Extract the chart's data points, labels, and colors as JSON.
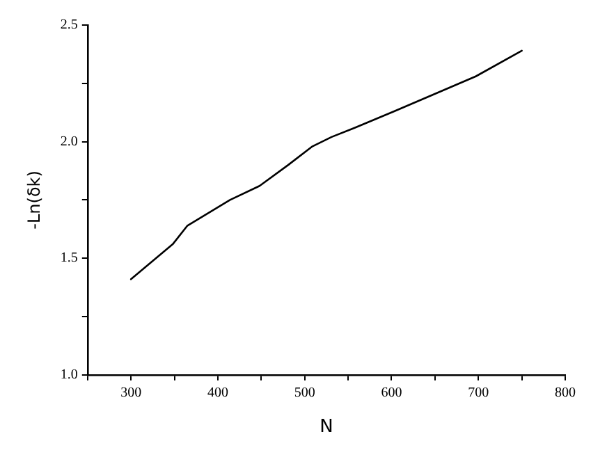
{
  "chart_data": {
    "type": "line",
    "xlabel": "N",
    "ylabel": "-Ln(δk)",
    "x": [
      300,
      348,
      365,
      414,
      448,
      481,
      509,
      531,
      558,
      603,
      647,
      697,
      750
    ],
    "series": [
      {
        "color": "#000000",
        "values": [
          1.41,
          1.56,
          1.64,
          1.75,
          1.81,
          1.9,
          1.98,
          2.02,
          2.06,
          2.13,
          2.2,
          2.28,
          2.39
        ]
      }
    ],
    "xlim": [
      250,
      800
    ],
    "xticks": [
      {
        "value": 250,
        "label": null
      },
      300,
      {
        "value": 350,
        "label": null
      },
      400,
      {
        "value": 450,
        "label": null
      },
      500,
      {
        "value": 550,
        "label": null
      },
      600,
      {
        "value": 650,
        "label": null
      },
      700,
      {
        "value": 750,
        "label": null
      },
      800
    ],
    "ylim": [
      1.0,
      2.5
    ],
    "yticks": [
      {
        "value": 1.0,
        "label": "1.0"
      },
      {
        "value": 1.25,
        "label": null
      },
      1.5,
      {
        "value": 1.75,
        "label": null
      },
      {
        "value": 2.0,
        "label": "2.0"
      },
      {
        "value": 2.25,
        "label": null
      },
      2.5
    ],
    "grid": false,
    "legend": false,
    "marker": "none",
    "line_style": "solid"
  }
}
